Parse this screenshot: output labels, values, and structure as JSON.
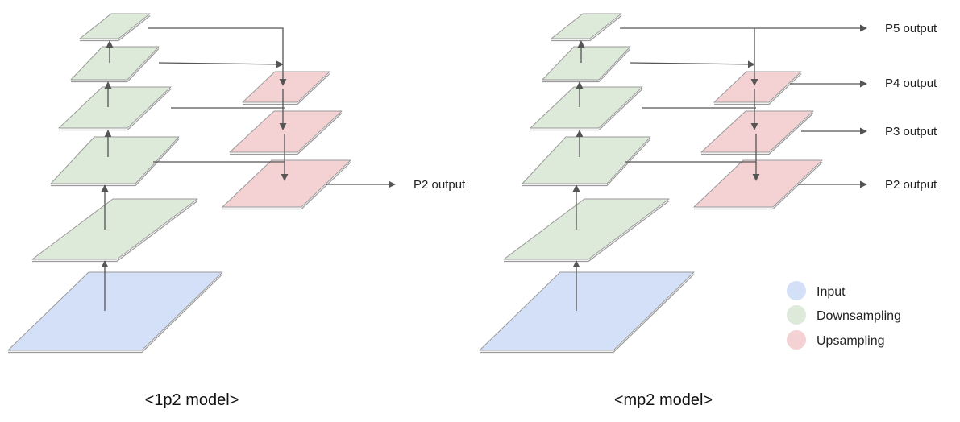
{
  "colors": {
    "input": "#d3e0f8",
    "downsampling": "#dde9d9",
    "upsampling": "#f4d2d4",
    "edge_line": "#555555",
    "plane_shadow": "#9a9a9a"
  },
  "legend": {
    "items": [
      {
        "label": "Input",
        "color": "#d3e0f8"
      },
      {
        "label": "Downsampling",
        "color": "#dde9d9"
      },
      {
        "label": "Upsampling",
        "color": "#f4d2d4"
      }
    ]
  },
  "models": [
    {
      "caption": "<1p2 model>",
      "outputs": [
        "P2 output"
      ]
    },
    {
      "caption": "<mp2 model>",
      "outputs": [
        "P5 output",
        "P4 output",
        "P3 output",
        "P2 output"
      ]
    }
  ]
}
